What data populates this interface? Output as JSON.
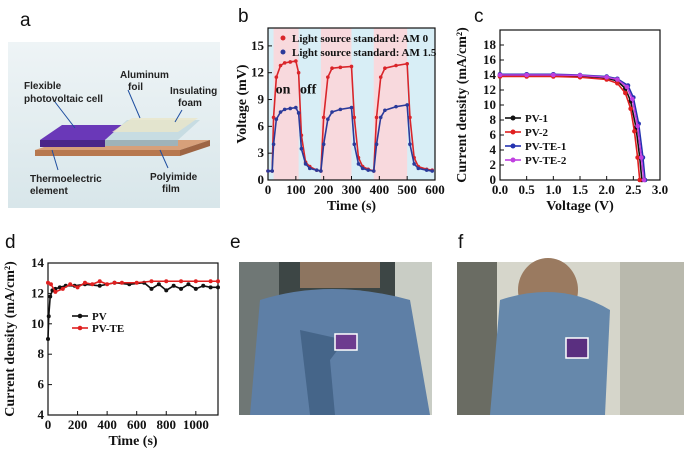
{
  "panels": {
    "a": "a",
    "b": "b",
    "c": "c",
    "d": "d",
    "e": "e",
    "f": "f"
  },
  "schematic": {
    "labels": [
      "Flexible photovoltaic cell",
      "Aluminum foil",
      "Insulating foam",
      "Thermoelectric element",
      "Polyimide film"
    ]
  },
  "photos": {
    "e_badge": "shirt-front-device",
    "f_badge": "sleeve-device"
  },
  "chart_data": [
    {
      "panel": "b",
      "type": "line",
      "xlabel": "Time (s)",
      "ylabel": "Voltage (mV)",
      "xlim": [
        0,
        600
      ],
      "ylim": [
        0,
        17
      ],
      "xticks": [
        0,
        100,
        200,
        300,
        400,
        500,
        600
      ],
      "yticks": [
        0,
        3,
        6,
        9,
        12,
        15
      ],
      "on_intervals": [
        [
          20,
          110
        ],
        [
          190,
          300
        ],
        [
          380,
          500
        ]
      ],
      "annotations": [
        "on",
        "off"
      ],
      "series": [
        {
          "name": "Light source standard: AM 0",
          "color": "#d9252a",
          "x": [
            0,
            15,
            20,
            30,
            45,
            60,
            80,
            100,
            110,
            120,
            135,
            150,
            175,
            190,
            200,
            215,
            230,
            260,
            300,
            310,
            325,
            340,
            360,
            380,
            390,
            405,
            420,
            460,
            500,
            510,
            525,
            540,
            570,
            590
          ],
          "y": [
            1,
            1,
            7,
            11.5,
            12.8,
            13.1,
            13.2,
            13.3,
            12,
            5,
            2,
            1.5,
            1.1,
            1,
            7,
            11.5,
            12.5,
            12.6,
            12.7,
            7,
            2.5,
            1.5,
            1.2,
            1,
            7,
            11.5,
            12.5,
            12.8,
            13.0,
            7,
            2.5,
            1.5,
            1.2,
            1.1
          ]
        },
        {
          "name": "Light source standard: AM 1.5",
          "color": "#2b3a9a",
          "x": [
            0,
            15,
            20,
            30,
            45,
            60,
            80,
            100,
            110,
            120,
            135,
            150,
            175,
            190,
            200,
            215,
            230,
            260,
            300,
            310,
            325,
            340,
            360,
            380,
            390,
            405,
            420,
            460,
            500,
            510,
            525,
            540,
            570,
            590
          ],
          "y": [
            1,
            1,
            4,
            6.8,
            7.6,
            7.9,
            8.0,
            8.1,
            7.5,
            3.5,
            1.8,
            1.3,
            1.1,
            1,
            4,
            6.8,
            7.6,
            7.9,
            8.1,
            4,
            1.8,
            1.3,
            1.1,
            1,
            4,
            7,
            7.8,
            8.2,
            8.4,
            4,
            1.8,
            1.3,
            1.1,
            1.0
          ]
        }
      ]
    },
    {
      "panel": "c",
      "type": "line",
      "xlabel": "Voltage (V)",
      "ylabel": "Current density (mA/cm²)",
      "xlim": [
        0,
        3.0
      ],
      "ylim": [
        0,
        20
      ],
      "xticks": [
        0.0,
        0.5,
        1.0,
        1.5,
        2.0,
        2.5,
        3.0
      ],
      "yticks": [
        0,
        2,
        4,
        6,
        8,
        10,
        12,
        14,
        16,
        18
      ],
      "series": [
        {
          "name": "PV-1",
          "color": "#111111",
          "x": [
            0,
            0.5,
            1.0,
            1.5,
            2.0,
            2.2,
            2.35,
            2.45,
            2.55,
            2.62,
            2.66
          ],
          "y": [
            13.9,
            13.9,
            13.9,
            13.85,
            13.6,
            13.2,
            12.2,
            10.5,
            7,
            3,
            0
          ]
        },
        {
          "name": "PV-2",
          "color": "#e02020",
          "x": [
            0,
            0.5,
            1.0,
            1.5,
            2.0,
            2.2,
            2.35,
            2.45,
            2.52,
            2.58,
            2.62
          ],
          "y": [
            13.8,
            13.8,
            13.8,
            13.7,
            13.4,
            12.9,
            11.6,
            9.5,
            6.5,
            3,
            0
          ]
        },
        {
          "name": "PV-TE-1",
          "color": "#2432b0",
          "x": [
            0,
            0.5,
            1.0,
            1.5,
            2.0,
            2.2,
            2.4,
            2.5,
            2.6,
            2.68,
            2.72
          ],
          "y": [
            14.1,
            14.1,
            14.1,
            14.0,
            13.8,
            13.5,
            12.6,
            11,
            7.5,
            3,
            0
          ]
        },
        {
          "name": "PV-TE-2",
          "color": "#c040e0",
          "x": [
            0,
            0.5,
            1.0,
            1.5,
            2.0,
            2.2,
            2.38,
            2.48,
            2.58,
            2.65,
            2.7
          ],
          "y": [
            14.0,
            14.0,
            14.0,
            13.95,
            13.7,
            13.4,
            12.4,
            10.8,
            7.2,
            3,
            0
          ]
        }
      ]
    },
    {
      "panel": "d",
      "type": "line",
      "xlabel": "Time (s)",
      "ylabel": "Current density (mA/cm²)",
      "xlim": [
        0,
        1150
      ],
      "ylim": [
        4,
        14
      ],
      "xticks": [
        0,
        200,
        400,
        600,
        800,
        1000
      ],
      "yticks": [
        4,
        6,
        8,
        10,
        12,
        14
      ],
      "series": [
        {
          "name": "PV",
          "color": "#111111",
          "x": [
            0,
            5,
            15,
            30,
            50,
            80,
            120,
            180,
            250,
            350,
            450,
            550,
            650,
            700,
            750,
            800,
            850,
            900,
            950,
            1000,
            1050,
            1100,
            1150
          ],
          "y": [
            9,
            10.5,
            11.8,
            12.2,
            12.3,
            12.4,
            12.5,
            12.5,
            12.6,
            12.5,
            12.7,
            12.6,
            12.7,
            12.3,
            12.6,
            12.2,
            12.5,
            12.3,
            12.6,
            12.3,
            12.5,
            12.4,
            12.4
          ]
        },
        {
          "name": "PV-TE",
          "color": "#e02020",
          "x": [
            0,
            20,
            50,
            100,
            150,
            200,
            250,
            300,
            350,
            400,
            450,
            500,
            600,
            700,
            800,
            900,
            1000,
            1100,
            1150
          ],
          "y": [
            12.7,
            12.6,
            12.1,
            12.3,
            12.6,
            12.4,
            12.7,
            12.6,
            12.8,
            12.6,
            12.7,
            12.7,
            12.7,
            12.8,
            12.8,
            12.8,
            12.8,
            12.8,
            12.8
          ]
        }
      ]
    }
  ]
}
